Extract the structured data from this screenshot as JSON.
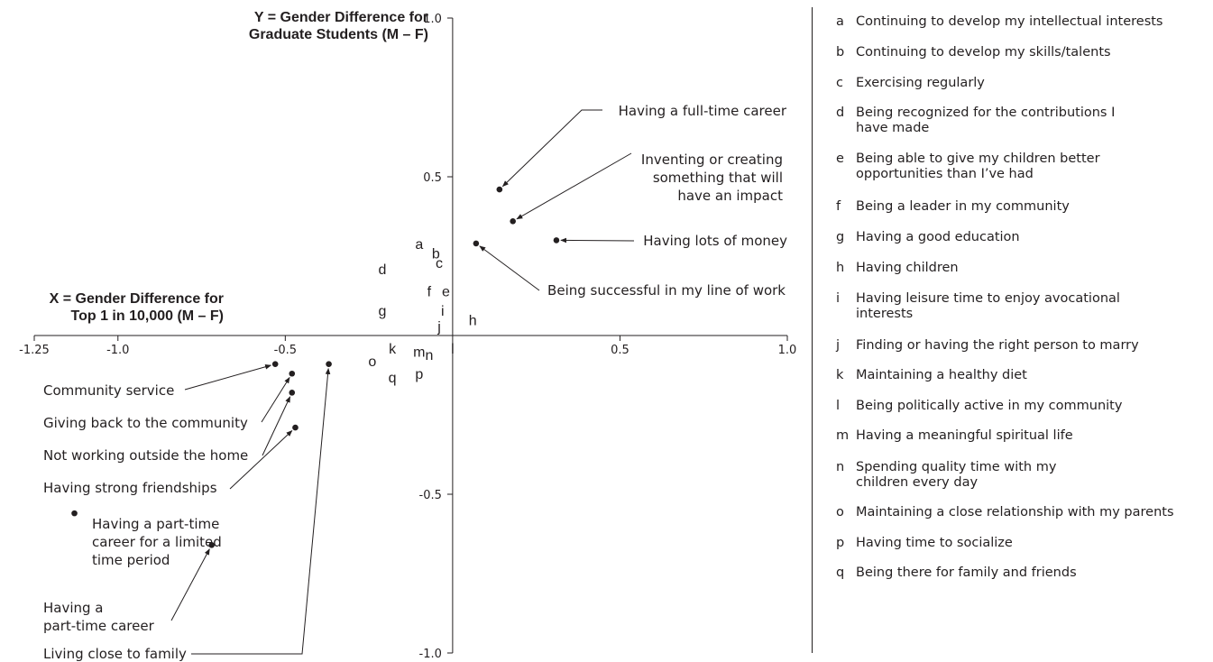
{
  "chart_data": {
    "type": "scatter",
    "xlabel": "X = Gender Difference for Top 1 in 10,000 (M – F)",
    "xlabel_lines": [
      "X = Gender Difference for",
      "Top 1 in 10,000 (M – F)"
    ],
    "ylabel": "Y = Gender Difference for Graduate Students (M – F)",
    "ylabel_lines": [
      "Y = Gender Difference for",
      "Graduate Students (M – F)"
    ],
    "xlim": [
      -1.25,
      1.0
    ],
    "ylim": [
      -1.0,
      1.0
    ],
    "x_ticks": [
      -1.25,
      -1.0,
      -0.5,
      0.5,
      1.0
    ],
    "x_tick_labels": [
      "-1.25",
      "-1.0",
      "-0.5",
      "0.5",
      "1.0"
    ],
    "y_ticks": [
      1.0,
      0.5,
      -0.5,
      -1.0
    ],
    "y_tick_labels": [
      "1.0",
      "0.5",
      "-0.5",
      "-1.0"
    ],
    "grid": false,
    "legend_placement": "right",
    "letter_points": [
      {
        "label": "a",
        "x": -0.1,
        "y": 0.29
      },
      {
        "label": "b",
        "x": -0.05,
        "y": 0.26
      },
      {
        "label": "c",
        "x": -0.04,
        "y": 0.23
      },
      {
        "label": "d",
        "x": -0.21,
        "y": 0.21
      },
      {
        "label": "e",
        "x": -0.02,
        "y": 0.14
      },
      {
        "label": "f",
        "x": -0.07,
        "y": 0.14
      },
      {
        "label": "g",
        "x": -0.21,
        "y": 0.08
      },
      {
        "label": "h",
        "x": 0.06,
        "y": 0.05
      },
      {
        "label": "i",
        "x": -0.03,
        "y": 0.08
      },
      {
        "label": "j",
        "x": -0.04,
        "y": 0.03
      },
      {
        "label": "k",
        "x": -0.18,
        "y": -0.04
      },
      {
        "label": "l",
        "x": 0.0,
        "y": -0.04
      },
      {
        "label": "m",
        "x": -0.1,
        "y": -0.05
      },
      {
        "label": "n",
        "x": -0.07,
        "y": -0.06
      },
      {
        "label": "o",
        "x": -0.24,
        "y": -0.08
      },
      {
        "label": "p",
        "x": -0.1,
        "y": -0.12
      },
      {
        "label": "q",
        "x": -0.18,
        "y": -0.13
      }
    ],
    "labeled_points": [
      {
        "label": "Having a full-time career",
        "x": 0.14,
        "y": 0.46
      },
      {
        "label": "Inventing or creating something that will have an impact",
        "x": 0.18,
        "y": 0.36
      },
      {
        "label": "Having lots of money",
        "x": 0.31,
        "y": 0.3
      },
      {
        "label": "Being successful in my line of work",
        "x": 0.07,
        "y": 0.29
      },
      {
        "label": "Community service",
        "x": -0.53,
        "y": -0.09
      },
      {
        "label": "Giving back to the community",
        "x": -0.48,
        "y": -0.12
      },
      {
        "label": "Not working outside the home",
        "x": -0.48,
        "y": -0.18
      },
      {
        "label": "Having strong friendships",
        "x": -0.47,
        "y": -0.29
      },
      {
        "label": "Living close to family",
        "x": -0.37,
        "y": -0.09
      },
      {
        "label": "Having a part-time career for a limited time period",
        "x": -1.13,
        "y": -0.56
      },
      {
        "label": "Having a part-time career",
        "x": -0.72,
        "y": -0.66
      }
    ]
  },
  "callouts": [
    {
      "lines": [
        "Having a full-time career"
      ]
    },
    {
      "lines": [
        "Inventing or creating",
        "something that will",
        "have an impact"
      ]
    },
    {
      "lines": [
        "Having lots of money"
      ]
    },
    {
      "lines": [
        "Being successful in my line of work"
      ]
    },
    {
      "lines": [
        "Community service"
      ]
    },
    {
      "lines": [
        "Giving back to the community"
      ]
    },
    {
      "lines": [
        "Not working outside the home"
      ]
    },
    {
      "lines": [
        "Having strong friendships"
      ]
    },
    {
      "lines": [
        "Living close to family"
      ]
    },
    {
      "lines": [
        "Having a part-time",
        "career for a limited",
        "time period"
      ]
    },
    {
      "lines": [
        "Having a",
        "part-time career"
      ]
    }
  ],
  "legend": [
    {
      "letter": "a",
      "text": "Continuing to develop my intellectual interests"
    },
    {
      "letter": "b",
      "text": "Continuing to develop my skills/talents"
    },
    {
      "letter": "c",
      "text": "Exercising regularly"
    },
    {
      "letter": "d",
      "text": "Being recognized for the contributions I have made"
    },
    {
      "letter": "e",
      "text": "Being able to give my children better opportunities than I’ve had"
    },
    {
      "letter": "f",
      "text": "Being a leader in my community"
    },
    {
      "letter": "g",
      "text": "Having a good education"
    },
    {
      "letter": "h",
      "text": "Having children"
    },
    {
      "letter": "i",
      "text": "Having leisure time to enjoy avocational interests"
    },
    {
      "letter": "j",
      "text": "Finding or having the right person to marry"
    },
    {
      "letter": "k",
      "text": "Maintaining a healthy diet"
    },
    {
      "letter": "l",
      "text": "Being politically active in my community"
    },
    {
      "letter": "m",
      "text": "Having a meaningful spiritual life"
    },
    {
      "letter": "n",
      "text": "Spending quality time with my children every day"
    },
    {
      "letter": "o",
      "text": "Maintaining a close  relationship with my parents"
    },
    {
      "letter": "p",
      "text": "Having time to socialize"
    },
    {
      "letter": "q",
      "text": "Being there for family and friends"
    }
  ],
  "colors": {
    "ink": "#231f20",
    "background": "#ffffff"
  }
}
